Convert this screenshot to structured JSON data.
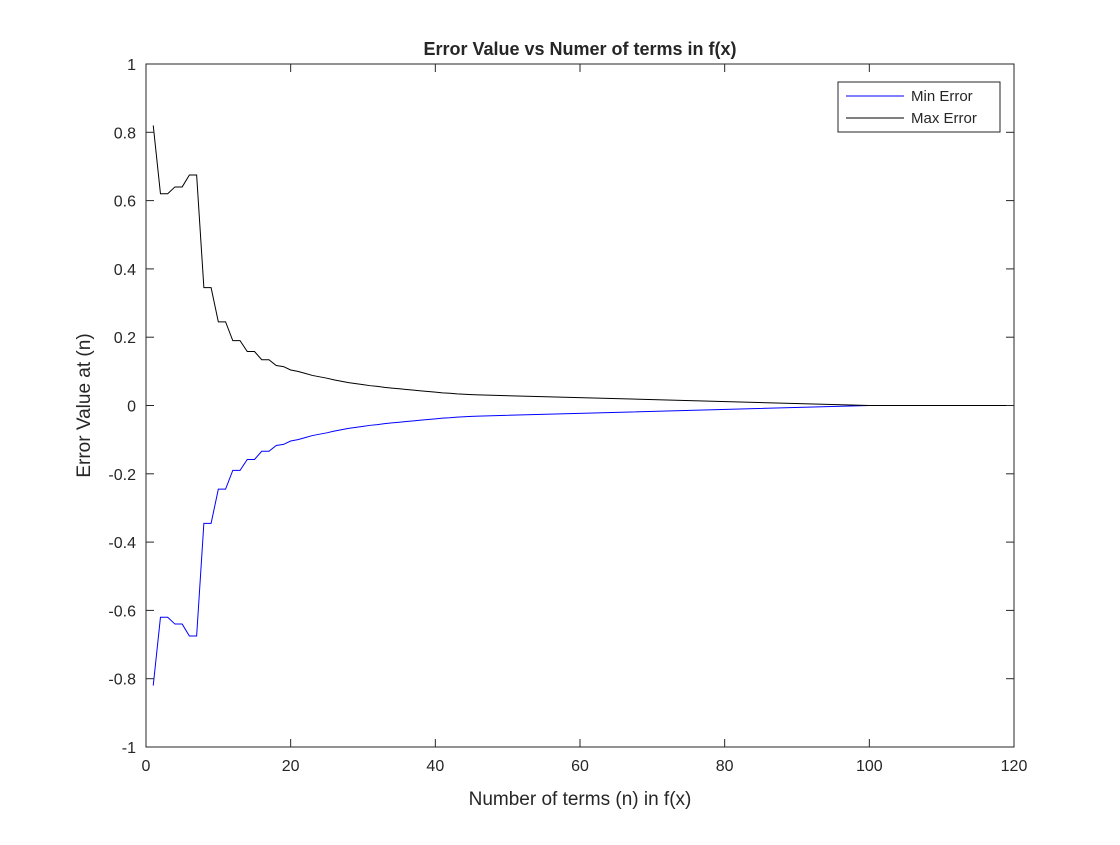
{
  "chart_data": {
    "type": "line",
    "title": "Error Value vs Numer of terms in f(x)",
    "xlabel": "Number of terms (n) in f(x)",
    "ylabel": "Error Value at (n)",
    "xlim": [
      0,
      120
    ],
    "ylim": [
      -1,
      1
    ],
    "xticks": [
      0,
      20,
      40,
      60,
      80,
      100,
      120
    ],
    "yticks": [
      -1,
      -0.8,
      -0.6,
      -0.4,
      -0.2,
      0,
      0.2,
      0.4,
      0.6,
      0.8,
      1
    ],
    "xtick_labels": [
      "0",
      "20",
      "40",
      "60",
      "80",
      "100",
      "120"
    ],
    "ytick_labels": [
      "-1",
      "-0.8",
      "-0.6",
      "-0.4",
      "-0.2",
      "0",
      "0.2",
      "0.4",
      "0.6",
      "0.8",
      "1"
    ],
    "grid": false,
    "legend_position": "top-right",
    "series": [
      {
        "name": "Min Error",
        "color": "#0000ff",
        "x": [
          1,
          2,
          3,
          4,
          5,
          6,
          7,
          8,
          9,
          10,
          11,
          12,
          13,
          14,
          15,
          16,
          17,
          18,
          19,
          20,
          21,
          22,
          23,
          24,
          25,
          26,
          27,
          28,
          29,
          30,
          31,
          32,
          33,
          34,
          35,
          36,
          37,
          38,
          39,
          40,
          41,
          42,
          43,
          44,
          45,
          46,
          100,
          120
        ],
        "values": [
          -0.82,
          -0.62,
          -0.62,
          -0.64,
          -0.64,
          -0.675,
          -0.675,
          -0.345,
          -0.345,
          -0.245,
          -0.245,
          -0.19,
          -0.19,
          -0.158,
          -0.158,
          -0.134,
          -0.134,
          -0.117,
          -0.114,
          -0.104,
          -0.1,
          -0.094,
          -0.088,
          -0.084,
          -0.08,
          -0.075,
          -0.071,
          -0.067,
          -0.064,
          -0.061,
          -0.058,
          -0.056,
          -0.053,
          -0.051,
          -0.049,
          -0.047,
          -0.045,
          -0.043,
          -0.041,
          -0.039,
          -0.037,
          -0.036,
          -0.034,
          -0.033,
          -0.032,
          -0.031,
          0,
          0
        ]
      },
      {
        "name": "Max Error",
        "color": "#000000",
        "x": [
          1,
          2,
          3,
          4,
          5,
          6,
          7,
          8,
          9,
          10,
          11,
          12,
          13,
          14,
          15,
          16,
          17,
          18,
          19,
          20,
          21,
          22,
          23,
          24,
          25,
          26,
          27,
          28,
          29,
          30,
          31,
          32,
          33,
          34,
          35,
          36,
          37,
          38,
          39,
          40,
          41,
          42,
          43,
          44,
          45,
          46,
          100,
          120
        ],
        "values": [
          0.82,
          0.62,
          0.62,
          0.64,
          0.64,
          0.675,
          0.675,
          0.345,
          0.345,
          0.245,
          0.245,
          0.19,
          0.19,
          0.158,
          0.158,
          0.134,
          0.134,
          0.117,
          0.114,
          0.104,
          0.1,
          0.094,
          0.088,
          0.084,
          0.08,
          0.075,
          0.071,
          0.067,
          0.064,
          0.061,
          0.058,
          0.056,
          0.053,
          0.051,
          0.049,
          0.047,
          0.045,
          0.043,
          0.041,
          0.039,
          0.037,
          0.036,
          0.034,
          0.033,
          0.032,
          0.031,
          0,
          0
        ]
      }
    ]
  }
}
